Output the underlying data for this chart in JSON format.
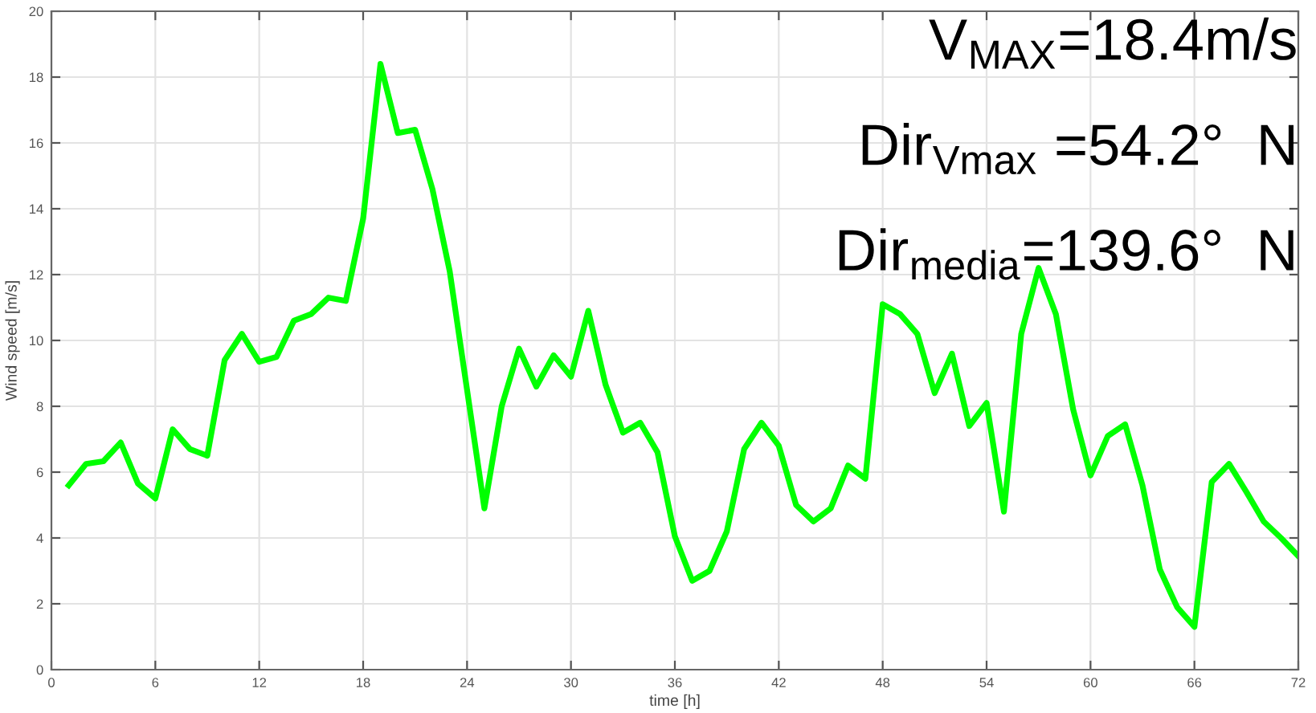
{
  "chart_data": {
    "type": "line",
    "xlabel": "time [h]",
    "ylabel": "Wind speed [m/s]",
    "x": [
      1,
      2,
      3,
      4,
      5,
      6,
      7,
      8,
      9,
      10,
      11,
      12,
      13,
      14,
      15,
      16,
      17,
      18,
      19,
      20,
      21,
      22,
      23,
      24,
      25,
      26,
      27,
      28,
      29,
      30,
      31,
      32,
      33,
      34,
      35,
      36,
      37,
      38,
      39,
      40,
      41,
      42,
      43,
      44,
      45,
      46,
      47,
      48,
      49,
      50,
      51,
      52,
      53,
      54,
      55,
      56,
      57,
      58,
      59,
      60,
      61,
      62,
      63,
      64,
      65,
      66,
      67,
      68,
      69,
      70,
      71,
      72
    ],
    "series": [
      {
        "color": "#00ff00",
        "values": [
          5.6,
          6.25,
          6.33,
          6.9,
          5.65,
          5.2,
          7.3,
          6.7,
          6.5,
          9.4,
          10.2,
          9.35,
          9.5,
          10.6,
          10.8,
          11.3,
          11.2,
          13.7,
          18.4,
          16.3,
          16.4,
          14.6,
          12.1,
          8.5,
          4.9,
          8.0,
          9.75,
          8.6,
          9.55,
          8.9,
          10.9,
          8.65,
          7.2,
          7.5,
          6.6,
          4.05,
          2.7,
          3.0,
          4.2,
          6.7,
          7.5,
          6.8,
          5.0,
          4.5,
          4.9,
          6.2,
          5.8,
          11.1,
          10.8,
          10.2,
          8.4,
          9.6,
          7.4,
          8.1,
          4.8,
          10.2,
          12.2,
          10.8,
          7.9,
          5.9,
          7.1,
          7.45,
          5.6,
          3.05,
          1.9,
          1.3,
          5.7,
          6.25,
          5.4,
          4.5,
          4.0,
          3.45
        ]
      }
    ],
    "xlim": [
      0,
      72
    ],
    "xticks": [
      0,
      6,
      12,
      18,
      24,
      30,
      36,
      42,
      48,
      54,
      60,
      66,
      72
    ],
    "ylim": [
      0,
      20
    ],
    "yticks": [
      0,
      2,
      4,
      6,
      8,
      10,
      12,
      14,
      16,
      18,
      20
    ],
    "grid": true,
    "marker": "none",
    "line_style": "solid",
    "annotations": [
      "V$_{MAX}$=18.4m/s",
      "Dir$_{Vmax}$ =54.2°  N",
      "Dir$_{media}$=139.6°  N"
    ]
  }
}
